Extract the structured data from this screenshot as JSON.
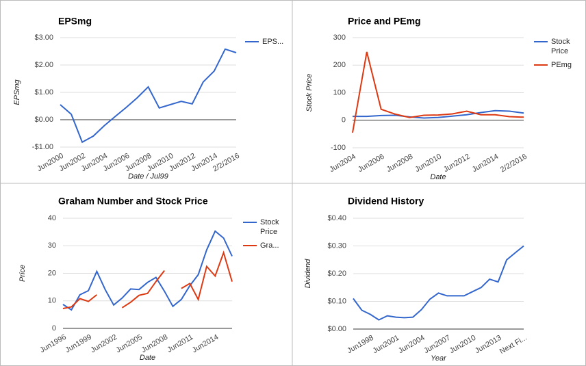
{
  "chart_data": [
    {
      "type": "line",
      "title": "EPSmg",
      "x_label": "Date / Jul99",
      "y_label": "EPSmg",
      "categories": [
        "Jun2000",
        null,
        "Jun2002",
        null,
        "Jun2004",
        null,
        "Jun2006",
        null,
        "Jun2008",
        null,
        "Jun2010",
        null,
        "Jun2012",
        null,
        "Jun2014",
        null,
        "2/2/2016"
      ],
      "series": [
        {
          "name": "EPS...",
          "color": "#3366cc",
          "values": [
            0.55,
            0.2,
            -0.82,
            -0.6,
            -0.22,
            0.12,
            0.45,
            0.8,
            1.2,
            0.43,
            0.55,
            0.67,
            0.58,
            1.38,
            1.78,
            2.58,
            2.45
          ]
        }
      ],
      "ylim": [
        -1,
        3
      ],
      "yticks": [
        {
          "value": -1,
          "label": "-$1.00"
        },
        {
          "value": 0,
          "label": "$0.00"
        },
        {
          "value": 1,
          "label": "$1.00"
        },
        {
          "value": 2,
          "label": "$2.00"
        },
        {
          "value": 3,
          "label": "$3.00"
        }
      ],
      "grid": true,
      "legend": "right"
    },
    {
      "type": "line",
      "title": "Price and PEmg",
      "x_label": "Date",
      "y_label": "Stock Price",
      "categories": [
        "Jun2004",
        null,
        "Jun2006",
        null,
        "Jun2008",
        null,
        "Jun2010",
        null,
        "Jun2012",
        null,
        "Jun2014",
        null,
        "2/2/2016"
      ],
      "series": [
        {
          "name": "Stock Price",
          "color": "#3366cc",
          "values": [
            14,
            14,
            17,
            18,
            12,
            8,
            10,
            15,
            20,
            28,
            35,
            33,
            26
          ]
        },
        {
          "name": "PEmg",
          "color": "#dc3912",
          "values": [
            -45,
            248,
            40,
            22,
            10,
            18,
            19,
            23,
            33,
            20,
            20,
            13,
            11
          ]
        }
      ],
      "ylim": [
        -100,
        300
      ],
      "yticks": [
        -100,
        0,
        100,
        200,
        300
      ],
      "grid": true,
      "legend": "right"
    },
    {
      "type": "line",
      "title": "Graham Number and Stock Price",
      "x_label": "Date",
      "y_label": "Price",
      "categories": [
        "Jun1996",
        null,
        null,
        "Jun1999",
        null,
        null,
        "Jun2002",
        null,
        null,
        "Jun2005",
        null,
        null,
        "Jun2008",
        null,
        null,
        "Jun2011",
        null,
        null,
        "Jun2014",
        null,
        null
      ],
      "series": [
        {
          "name": "Stock Price",
          "color": "#3366cc",
          "values": [
            8.7,
            6.7,
            12.2,
            13.7,
            20.7,
            14,
            8.5,
            11,
            14.3,
            14.1,
            16.7,
            18.5,
            13.5,
            8,
            10.5,
            15.5,
            19.5,
            28.5,
            35.3,
            32.8,
            26.2
          ]
        },
        {
          "name": "Gra...",
          "color": "#dc3912",
          "values": [
            7.2,
            7.8,
            10.8,
            9.8,
            12.2,
            null,
            null,
            7.5,
            9.5,
            12,
            12.7,
            17,
            21,
            null,
            14.5,
            16.3,
            10.5,
            22.5,
            19,
            27.5,
            17
          ]
        }
      ],
      "ylim": [
        0,
        40
      ],
      "yticks": [
        0,
        10,
        20,
        30,
        40
      ],
      "grid": true,
      "legend": "right"
    },
    {
      "type": "line",
      "title": "Dividend History",
      "x_label": "Year",
      "y_label": "Dividend",
      "categories": [
        null,
        null,
        "Jun1998",
        null,
        null,
        "Jun2001",
        null,
        null,
        "Jun2004",
        null,
        null,
        "Jun2007",
        null,
        null,
        "Jun2010",
        null,
        null,
        "Jun2013",
        null,
        null,
        "Next Fi..."
      ],
      "series": [
        {
          "color": "#3366cc",
          "values": [
            0.11,
            0.068,
            0.053,
            0.033,
            0.048,
            0.043,
            0.041,
            0.043,
            0.07,
            0.108,
            0.13,
            0.12,
            0.12,
            0.12,
            0.135,
            0.15,
            0.18,
            0.17,
            0.25,
            0.275,
            0.3
          ]
        }
      ],
      "ylim": [
        0,
        0.4
      ],
      "yticks": [
        {
          "value": 0,
          "label": "$0.00"
        },
        {
          "value": 0.1,
          "label": "$0.10"
        },
        {
          "value": 0.2,
          "label": "$0.20"
        },
        {
          "value": 0.3,
          "label": "$0.30"
        },
        {
          "value": 0.4,
          "label": "$0.40"
        }
      ],
      "grid": true
    }
  ]
}
